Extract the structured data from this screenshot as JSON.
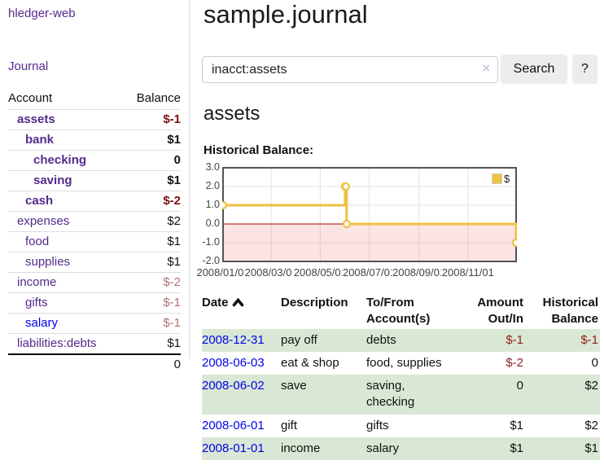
{
  "app": {
    "brand": "hledger-web",
    "nav_journal": "Journal"
  },
  "colors": {
    "link_purple": "#552a8b",
    "link_blue": "#0000ee",
    "negative_strong": "#7f1212",
    "negative_light": "#b47070",
    "register_negative": "#8f1d1d",
    "row_shade_green": "#d9e8d4",
    "series_yellow": "#edc240",
    "zero_line_red": "#aa0000",
    "negative_region_pink": "#fbdada",
    "chart_border": "#545454",
    "grid": "#e3e3e3"
  },
  "sidebar": {
    "header": {
      "account": "Account",
      "balance": "Balance"
    },
    "accounts": [
      {
        "name": "assets",
        "balance": "$-1",
        "level": 1,
        "bold": true,
        "name_style": "purple",
        "balance_style": "neg-strong"
      },
      {
        "name": "bank",
        "balance": "$1",
        "level": 2,
        "bold": true,
        "name_style": "purple",
        "balance_style": ""
      },
      {
        "name": "checking",
        "balance": "0",
        "level": 3,
        "bold": true,
        "name_style": "purple",
        "balance_style": ""
      },
      {
        "name": "saving",
        "balance": "$1",
        "level": 3,
        "bold": true,
        "name_style": "purple",
        "balance_style": ""
      },
      {
        "name": "cash",
        "balance": "$-2",
        "level": 2,
        "bold": true,
        "name_style": "purple",
        "balance_style": "neg-strong"
      },
      {
        "name": "expenses",
        "balance": "$2",
        "level": 1,
        "bold": false,
        "name_style": "purple",
        "balance_style": ""
      },
      {
        "name": "food",
        "balance": "$1",
        "level": 2,
        "bold": false,
        "name_style": "purple",
        "balance_style": ""
      },
      {
        "name": "supplies",
        "balance": "$1",
        "level": 2,
        "bold": false,
        "name_style": "purple",
        "balance_style": ""
      },
      {
        "name": "income",
        "balance": "$-2",
        "level": 1,
        "bold": false,
        "name_style": "purple",
        "balance_style": "neg-light"
      },
      {
        "name": "gifts",
        "balance": "$-1",
        "level": 2,
        "bold": false,
        "name_style": "purple",
        "balance_style": "neg-light"
      },
      {
        "name": "salary",
        "balance": "$-1",
        "level": 2,
        "bold": false,
        "name_style": "blue",
        "balance_style": "neg-light"
      },
      {
        "name": "liabilities:debts",
        "balance": "$1",
        "level": 1,
        "bold": false,
        "name_style": "purple",
        "balance_style": ""
      }
    ],
    "total": "0"
  },
  "header": {
    "title": "sample.journal"
  },
  "search": {
    "value": "inacct:assets",
    "clear_icon": "×",
    "button_label": "Search",
    "help_label": "?"
  },
  "account_page": {
    "title": "assets",
    "chart_caption": "Historical Balance:"
  },
  "chart_data": {
    "type": "line",
    "step": true,
    "title": "Historical Balance",
    "legend": [
      {
        "name": "$",
        "color": "#edc240"
      }
    ],
    "legend_position": "top-right",
    "x_ticks": [
      "2008/01/01",
      "2008/03/01",
      "2008/05/01",
      "2008/07/01",
      "2008/09/01",
      "2008/11/01"
    ],
    "y_ticks": [
      "3.0",
      "2.0",
      "1.0",
      "0.0",
      "-1.0",
      "-2.0"
    ],
    "ylim": [
      -2,
      3
    ],
    "xlim": [
      "2008-01-01",
      "2008-12-31"
    ],
    "grid": true,
    "series": [
      {
        "name": "$",
        "points": [
          {
            "date": "2008-01-01",
            "value": 1
          },
          {
            "date": "2008-06-01",
            "value": 2
          },
          {
            "date": "2008-06-02",
            "value": 2
          },
          {
            "date": "2008-06-03",
            "value": 0
          },
          {
            "date": "2008-12-31",
            "value": -1
          }
        ]
      }
    ]
  },
  "register": {
    "columns": [
      "Date",
      "Description",
      "To/From Account(s)",
      "Amount Out/In",
      "Historical Balance"
    ],
    "rows": [
      {
        "date": "2008-12-31",
        "description": "pay off",
        "accounts": "debts",
        "amount": "$-1",
        "amount_neg": true,
        "balance": "$-1",
        "balance_neg": true,
        "shaded": true
      },
      {
        "date": "2008-06-03",
        "description": "eat & shop",
        "accounts": "food, supplies",
        "amount": "$-2",
        "amount_neg": true,
        "balance": "0",
        "balance_neg": false,
        "shaded": false
      },
      {
        "date": "2008-06-02",
        "description": "save",
        "accounts": "saving, checking",
        "amount": "0",
        "amount_neg": false,
        "balance": "$2",
        "balance_neg": false,
        "shaded": true
      },
      {
        "date": "2008-06-01",
        "description": "gift",
        "accounts": "gifts",
        "amount": "$1",
        "amount_neg": false,
        "balance": "$2",
        "balance_neg": false,
        "shaded": false
      },
      {
        "date": "2008-01-01",
        "description": "income",
        "accounts": "salary",
        "amount": "$1",
        "amount_neg": false,
        "balance": "$1",
        "balance_neg": false,
        "shaded": true
      }
    ]
  }
}
